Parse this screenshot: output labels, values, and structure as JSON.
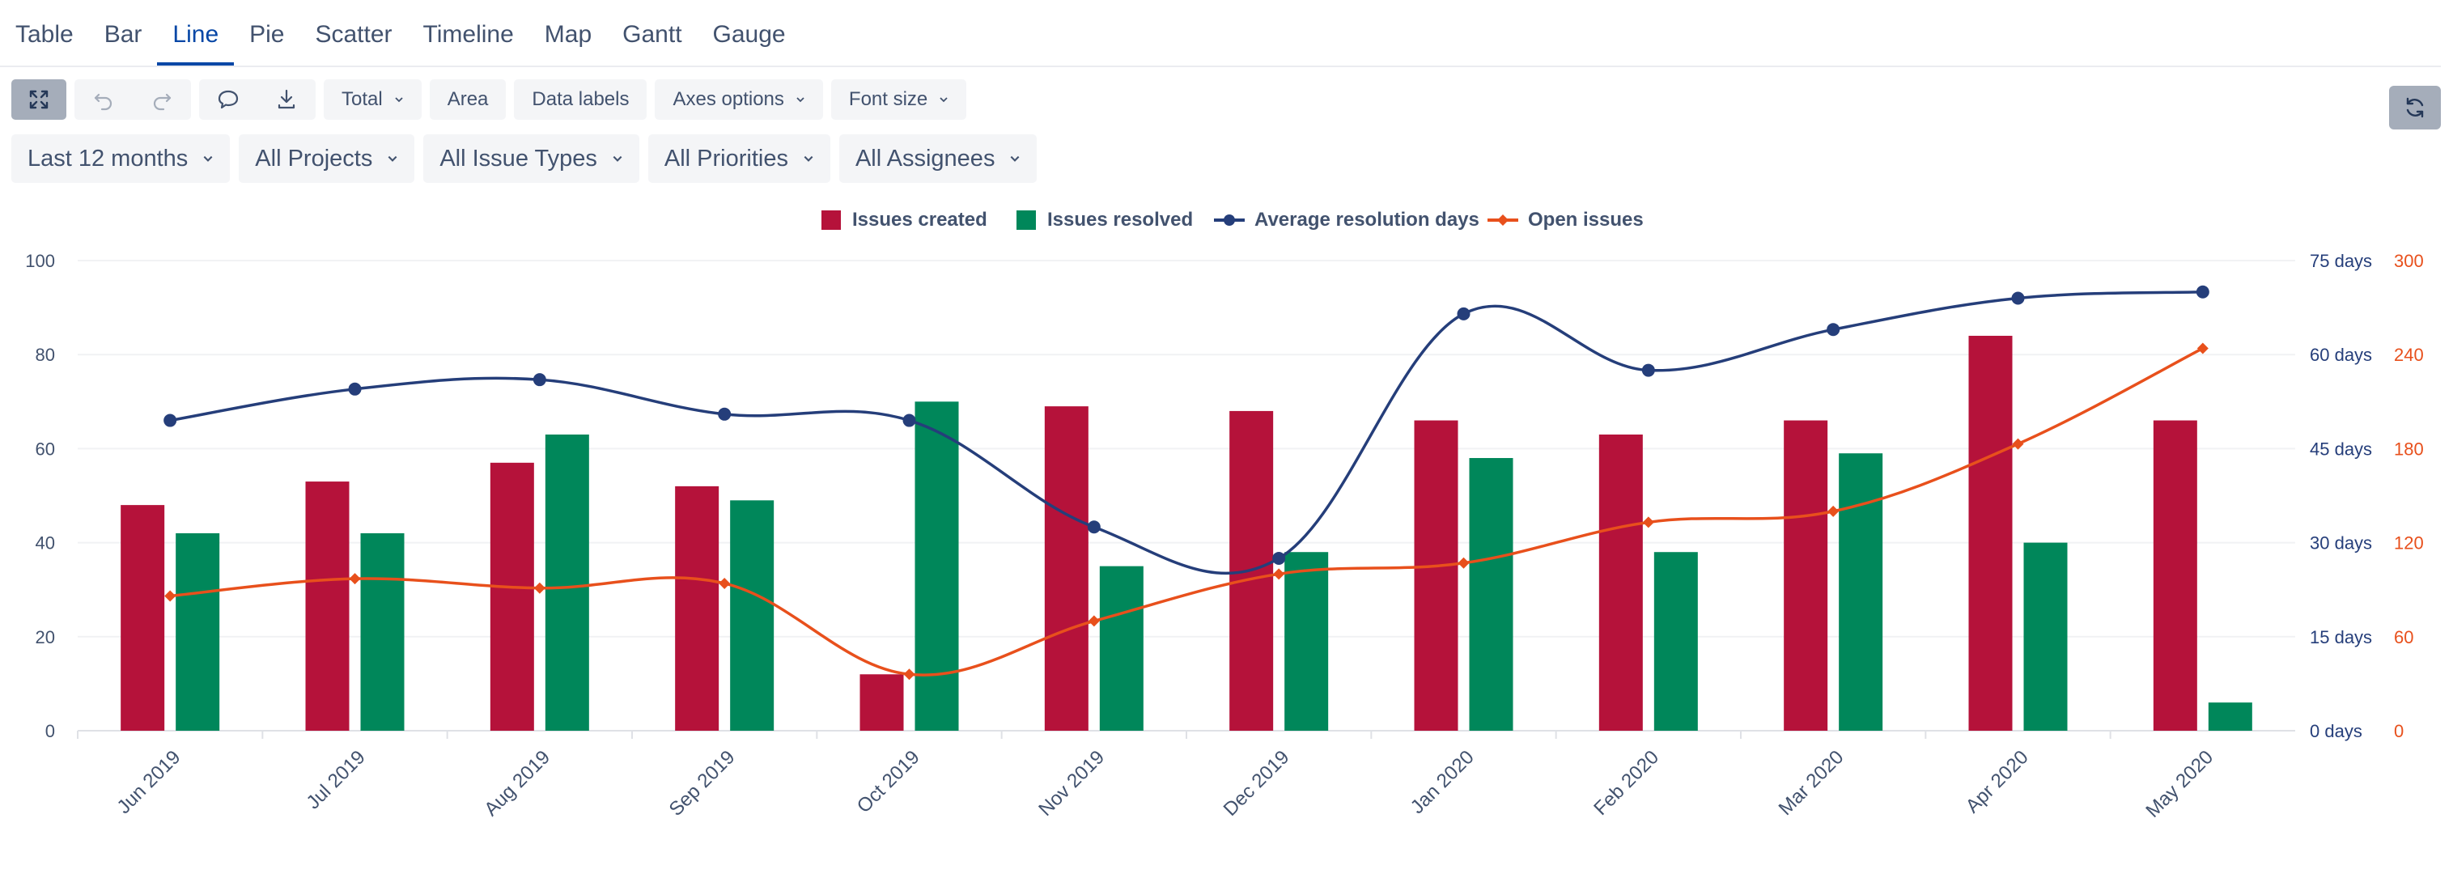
{
  "tabs": [
    {
      "label": "Table",
      "active": false
    },
    {
      "label": "Bar",
      "active": false
    },
    {
      "label": "Line",
      "active": true
    },
    {
      "label": "Pie",
      "active": false
    },
    {
      "label": "Scatter",
      "active": false
    },
    {
      "label": "Timeline",
      "active": false
    },
    {
      "label": "Map",
      "active": false
    },
    {
      "label": "Gantt",
      "active": false
    },
    {
      "label": "Gauge",
      "active": false
    }
  ],
  "toolbar": {
    "total_label": "Total",
    "area_label": "Area",
    "data_labels_label": "Data labels",
    "axes_options_label": "Axes options",
    "font_size_label": "Font size"
  },
  "filters": {
    "period": "Last 12 months",
    "projects": "All Projects",
    "issue_types": "All Issue Types",
    "priorities": "All Priorities",
    "assignees": "All Assignees"
  },
  "colors": {
    "created": "#b5123a",
    "resolved": "#00875a",
    "avg_days": "#253e7a",
    "open": "#e8501c"
  },
  "chart_data": {
    "type": "bar",
    "categories": [
      "Jun 2019",
      "Jul 2019",
      "Aug 2019",
      "Sep 2019",
      "Oct 2019",
      "Nov 2019",
      "Dec 2019",
      "Jan 2020",
      "Feb 2020",
      "Mar 2020",
      "Apr 2020",
      "May 2020"
    ],
    "series": [
      {
        "name": "Issues created",
        "type": "bar",
        "axis": "left",
        "values": [
          48,
          53,
          57,
          52,
          12,
          69,
          68,
          66,
          63,
          66,
          84,
          66
        ]
      },
      {
        "name": "Issues resolved",
        "type": "bar",
        "axis": "left",
        "values": [
          42,
          42,
          63,
          49,
          70,
          35,
          38,
          58,
          38,
          59,
          40,
          6
        ]
      },
      {
        "name": "Average resolution days",
        "type": "line",
        "axis": "right1",
        "values": [
          49.5,
          54.5,
          56,
          50.5,
          49.5,
          32.5,
          27.5,
          66.5,
          57.5,
          64,
          69,
          70
        ]
      },
      {
        "name": "Open issues",
        "type": "line",
        "axis": "right2",
        "values": [
          86,
          97,
          91,
          94,
          36,
          70,
          100,
          107,
          133,
          140,
          183,
          244
        ]
      }
    ],
    "y_left": {
      "min": 0,
      "max": 100,
      "ticks": [
        "0",
        "20",
        "40",
        "60",
        "80",
        "100"
      ]
    },
    "y_right1": {
      "min": 0,
      "max": 75,
      "ticks": [
        "0 days",
        "15 days",
        "30 days",
        "45 days",
        "60 days",
        "75 days"
      ]
    },
    "y_right2": {
      "min": 0,
      "max": 300,
      "ticks": [
        "0",
        "60",
        "120",
        "180",
        "240",
        "300"
      ]
    },
    "legend_position": "top",
    "grid": true
  }
}
